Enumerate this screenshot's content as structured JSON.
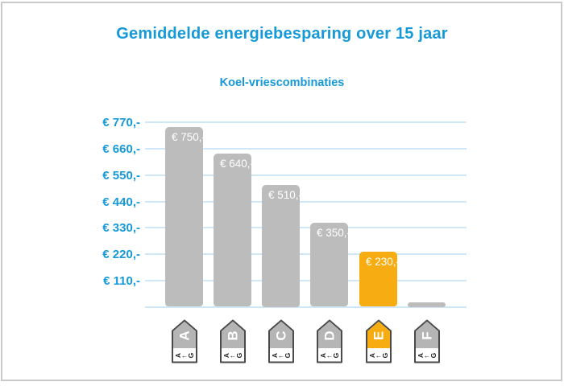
{
  "window": {
    "background": "#ffffff",
    "frame_border_color": "#c9c9c9"
  },
  "chart_data": {
    "type": "bar",
    "title": "Gemiddelde energiebesparing over 15 jaar",
    "subtitle": "Koel-vriescombinaties",
    "categories": [
      "A",
      "B",
      "C",
      "D",
      "E",
      "F"
    ],
    "values": [
      750,
      640,
      510,
      350,
      230,
      20
    ],
    "bar_labels": [
      "€ 750,-",
      "€ 640,-",
      "€ 510,-",
      "€ 350,-",
      "€ 230,-",
      ""
    ],
    "bar_colors": [
      "#bcbcbc",
      "#bcbcbc",
      "#bcbcbc",
      "#bcbcbc",
      "#f7ad12",
      "#bcbcbc"
    ],
    "highlight_index": 4,
    "y_ticks": [
      {
        "label": "€ 770,-",
        "value": 770
      },
      {
        "label": "€ 660,-",
        "value": 660
      },
      {
        "label": "€ 550,-",
        "value": 550
      },
      {
        "label": "€ 440,-",
        "value": 440
      },
      {
        "label": "€ 330,-",
        "value": 330
      },
      {
        "label": "€ 220,-",
        "value": 220
      },
      {
        "label": "€ 110,-",
        "value": 110
      }
    ],
    "ylim": [
      0,
      770
    ],
    "grid": true,
    "legend": "none",
    "colors": {
      "title_text": "#1699d8",
      "axis_text": "#1699d8",
      "grid": "#cfe7f7",
      "bar_gray": "#bcbcbc",
      "bar_orange": "#f7ad12",
      "bar_value_text": "#ffffff"
    },
    "x_axis_icons": {
      "type": "energy-label-arrow",
      "letters": [
        "A",
        "B",
        "C",
        "D",
        "E",
        "F"
      ],
      "fills": [
        "#b5b5b5",
        "#b5b5b5",
        "#b5b5b5",
        "#b5b5b5",
        "#f7ad12",
        "#b5b5b5"
      ],
      "scale_chars": [
        "A",
        "←",
        "G"
      ],
      "border_color": "#4a4a4a",
      "letter_color": "#ffffff",
      "scale_text_color": "#222222"
    }
  }
}
